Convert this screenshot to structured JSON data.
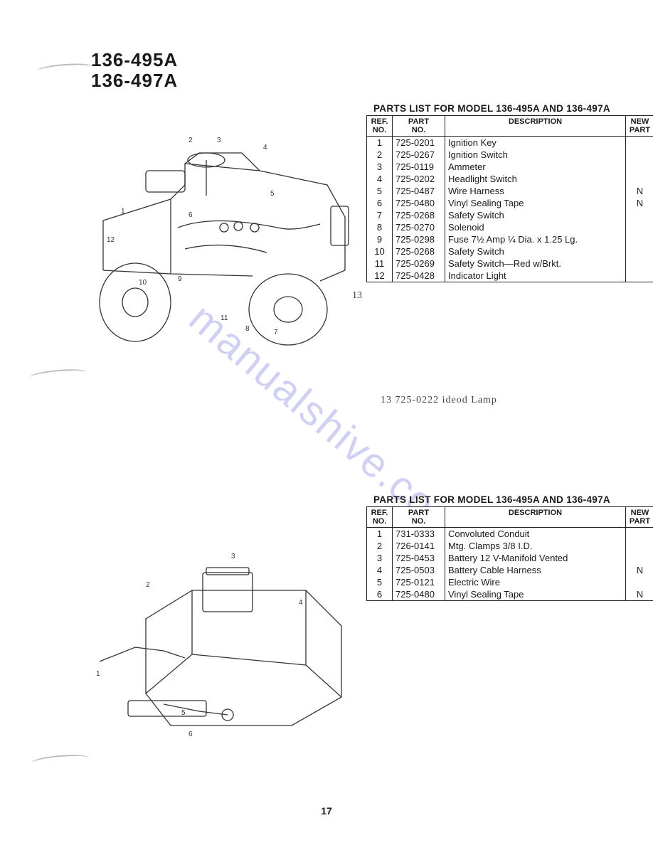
{
  "heading": {
    "line1": "136-495A",
    "line2": "136-497A"
  },
  "page_number": "17",
  "watermark": "manualshive.com",
  "handwritten": {
    "callout_13": "13",
    "note": "13  725-0222  ideod Lamp"
  },
  "section1": {
    "diagram_label": "Tractor wiring diagram — top view (callouts 1–13)",
    "caption": "PARTS LIST FOR MODEL 136-495A AND 136-497A",
    "columns": {
      "ref": "REF.\nNO.",
      "part": "PART\nNO.",
      "desc": "DESCRIPTION",
      "newp": "NEW\nPART"
    },
    "rows": [
      {
        "ref": "1",
        "part": "725-0201",
        "desc": "Ignition Key",
        "newp": ""
      },
      {
        "ref": "2",
        "part": "725-0267",
        "desc": "Ignition Switch",
        "newp": ""
      },
      {
        "ref": "3",
        "part": "725-0119",
        "desc": "Ammeter",
        "newp": ""
      },
      {
        "ref": "4",
        "part": "725-0202",
        "desc": "Headlight Switch",
        "newp": ""
      },
      {
        "ref": "5",
        "part": "725-0487",
        "desc": "Wire Harness",
        "newp": "N"
      },
      {
        "ref": "6",
        "part": "725-0480",
        "desc": "Vinyl Sealing Tape",
        "newp": "N"
      },
      {
        "ref": "7",
        "part": "725-0268",
        "desc": "Safety Switch",
        "newp": ""
      },
      {
        "ref": "8",
        "part": "725-0270",
        "desc": "Solenoid",
        "newp": ""
      },
      {
        "ref": "9",
        "part": "725-0298",
        "desc": "Fuse 7½ Amp ¼ Dia. x 1.25 Lg.",
        "newp": ""
      },
      {
        "ref": "10",
        "part": "725-0268",
        "desc": "Safety Switch",
        "newp": ""
      },
      {
        "ref": "11",
        "part": "725-0269",
        "desc": "Safety Switch—Red w/Brkt.",
        "newp": ""
      },
      {
        "ref": "12",
        "part": "725-0428",
        "desc": "Indicator Light",
        "newp": ""
      }
    ]
  },
  "section2": {
    "diagram_label": "Tractor rear/battery diagram (callouts 1–6)",
    "caption": "PARTS LIST FOR MODEL 136-495A AND 136-497A",
    "columns": {
      "ref": "REF.\nNO.",
      "part": "PART\nNO.",
      "desc": "DESCRIPTION",
      "newp": "NEW\nPART"
    },
    "rows": [
      {
        "ref": "1",
        "part": "731-0333",
        "desc": "Convoluted Conduit",
        "newp": ""
      },
      {
        "ref": "2",
        "part": "726-0141",
        "desc": "Mtg. Clamps 3/8 I.D.",
        "newp": ""
      },
      {
        "ref": "3",
        "part": "725-0453",
        "desc": "Battery 12 V-Manifold Vented",
        "newp": ""
      },
      {
        "ref": "4",
        "part": "725-0503",
        "desc": "Battery Cable Harness",
        "newp": "N"
      },
      {
        "ref": "5",
        "part": "725-0121",
        "desc": "Electric Wire",
        "newp": ""
      },
      {
        "ref": "6",
        "part": "725-0480",
        "desc": "Vinyl Sealing Tape",
        "newp": "N"
      }
    ]
  },
  "style": {
    "heading_fontsize": 26,
    "caption_fontsize": 13.5,
    "body_fontsize": 13,
    "text_color": "#1a1a1a",
    "border_color": "#222222",
    "watermark_color": "rgba(120,120,220,0.35)",
    "background": "#ffffff"
  }
}
